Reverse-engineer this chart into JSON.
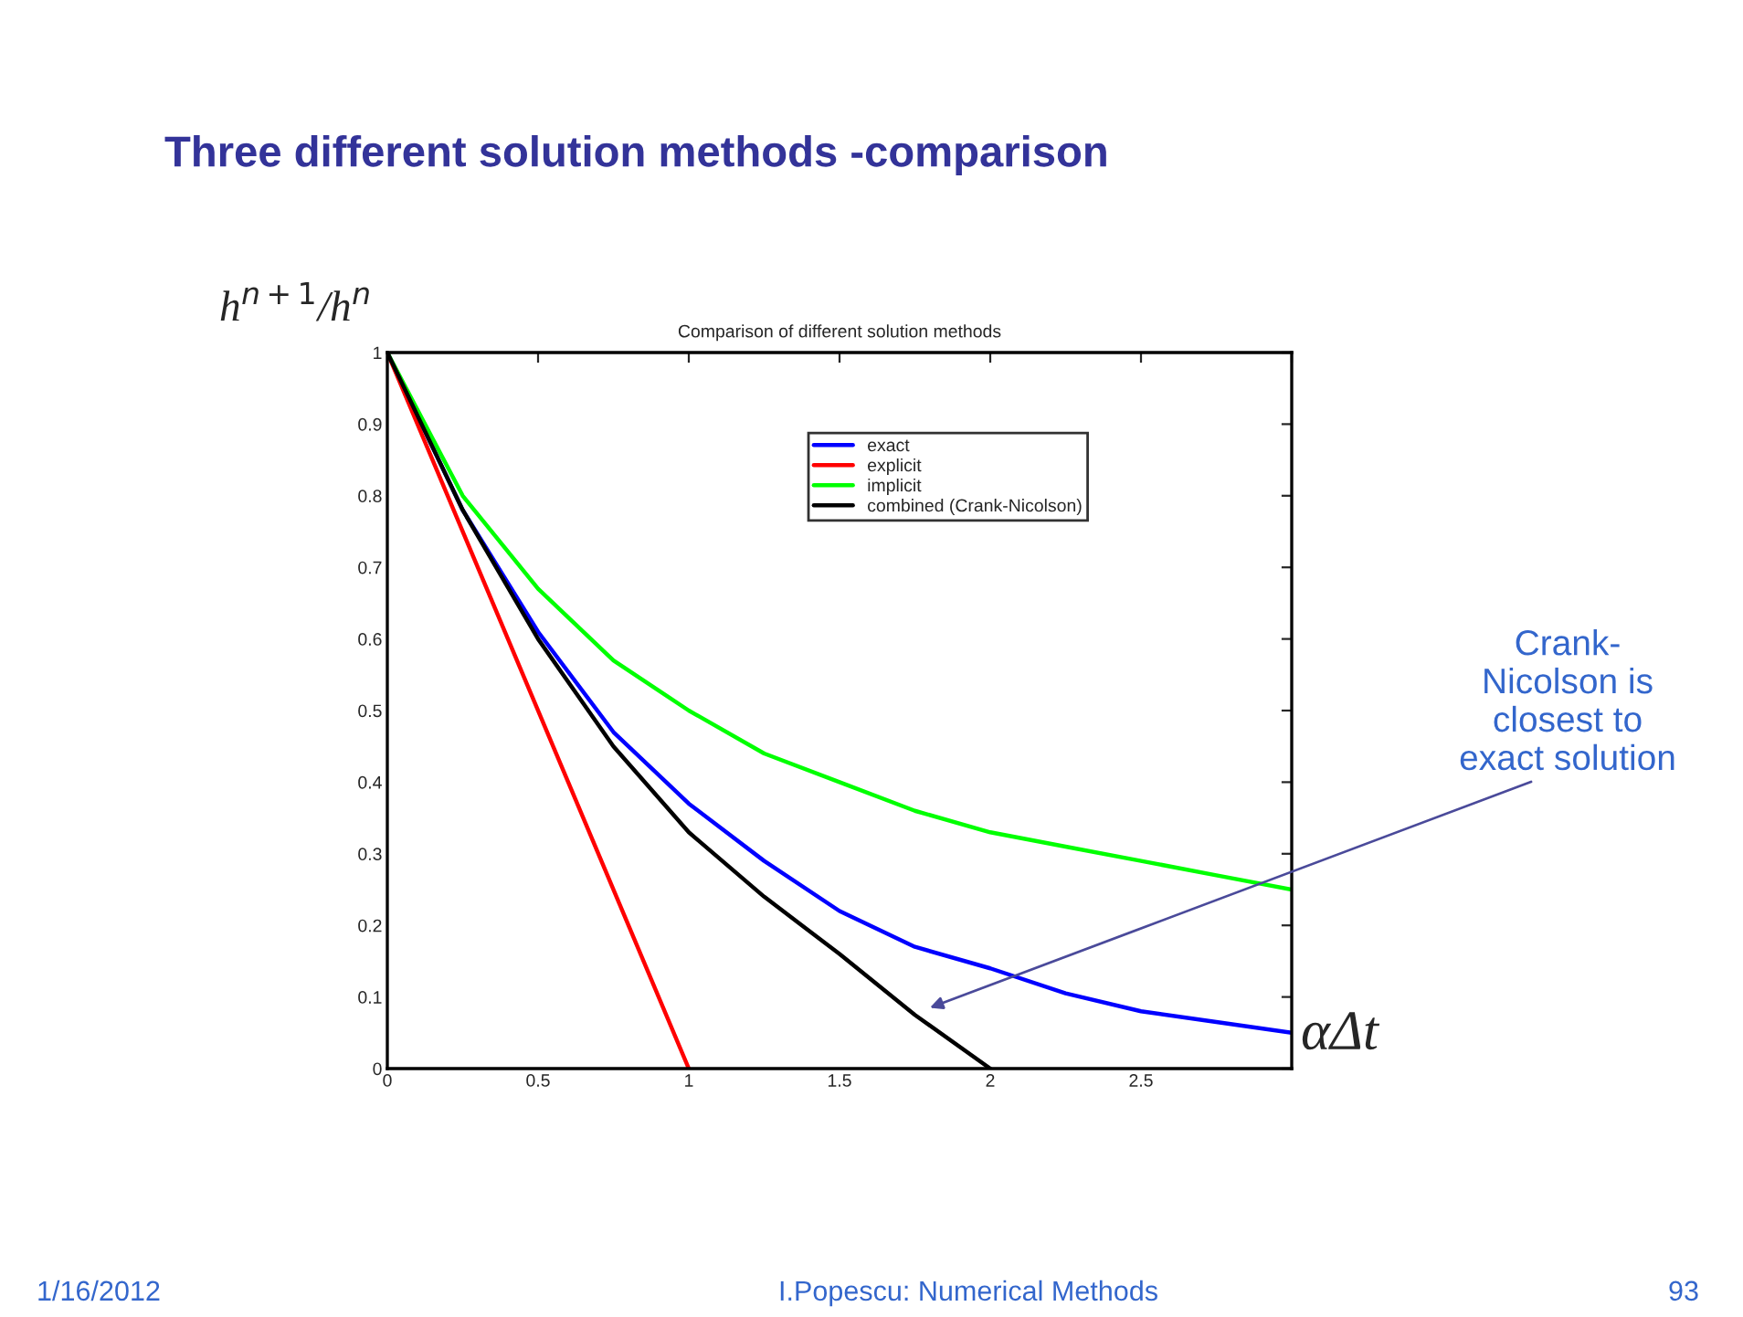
{
  "chart_data": {
    "type": "line",
    "title": "Comparison of different solution methods",
    "subtitle": "Three different solution methods -comparison",
    "xlabel": "αΔt",
    "ylabel": "h$^{n+1}$/h$^{n}$",
    "xlim": [
      0,
      3
    ],
    "ylim": [
      0,
      1
    ],
    "xticks": [
      0,
      0.5,
      1,
      1.5,
      2,
      2.5,
      {
        "value": 3,
        "label": null
      }
    ],
    "yticks": [
      0,
      0.1,
      0.2,
      0.3,
      0.4,
      0.5,
      0.6,
      0.7,
      0.8,
      0.9,
      1
    ],
    "series": [
      {
        "name": "exact",
        "color": "#0000ff",
        "x": [
          0,
          0.25,
          0.5,
          0.75,
          1,
          1.25,
          1.5,
          1.75,
          2,
          2.25,
          2.5,
          2.75,
          3
        ],
        "values": [
          1,
          0.78,
          0.61,
          0.47,
          0.37,
          0.29,
          0.22,
          0.17,
          0.14,
          0.105,
          0.08,
          0.065,
          0.05
        ]
      },
      {
        "name": "explicit",
        "color": "#ff0000",
        "x": [
          0,
          1
        ],
        "values": [
          1,
          0
        ]
      },
      {
        "name": "implicit",
        "color": "#00ff00",
        "x": [
          0,
          0.25,
          0.5,
          0.75,
          1,
          1.25,
          1.5,
          1.75,
          2,
          2.25,
          2.5,
          2.75,
          3
        ],
        "values": [
          1,
          0.8,
          0.67,
          0.57,
          0.5,
          0.44,
          0.4,
          0.36,
          0.33,
          0.31,
          0.29,
          0.27,
          0.25
        ]
      },
      {
        "name": "combined (Crank-Nicolson)",
        "color": "#000000",
        "x": [
          0,
          0.25,
          0.5,
          0.75,
          1,
          1.25,
          1.5,
          1.75,
          2
        ],
        "values": [
          1,
          0.78,
          0.6,
          0.45,
          0.33,
          0.24,
          0.16,
          0.075,
          0
        ]
      }
    ],
    "legend": "top",
    "grid": false,
    "marker": "none",
    "line_style": "solid",
    "annotations": [
      "Crank-\nNicolson is\nclosest to\nexact solution",
      "1/16/2012",
      "I.Popescu: Numerical Methods",
      "93"
    ]
  }
}
